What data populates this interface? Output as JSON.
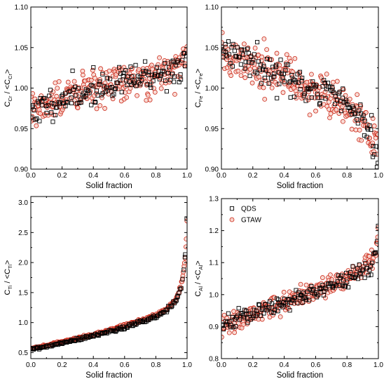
{
  "colors": {
    "qds": "#000000",
    "gtaw_edge": "#cc2a1a",
    "gtaw_fill": "#f7d0c8"
  },
  "legend": {
    "entries": [
      "QDS",
      "GTAW"
    ],
    "placement": "top-left of bottom-right panel"
  },
  "chart_data": [
    {
      "type": "scatter",
      "panel": "top-left",
      "xlabel": "Solid fraction",
      "ylabel": {
        "main": "C",
        "sub": "Cr",
        "sep": " / <C",
        "sub2": "Cr",
        "close": ">"
      },
      "xlim": [
        0,
        1.0
      ],
      "ylim": [
        0.9,
        1.1
      ],
      "xticks": [
        "0.0",
        "0.2",
        "0.4",
        "0.6",
        "0.8",
        "1.0"
      ],
      "yticks": [
        "0.90",
        "0.95",
        "1.00",
        "1.05",
        "1.10"
      ],
      "xtick_values": [
        0,
        0.2,
        0.4,
        0.6,
        0.8,
        1.0
      ],
      "ytick_values": [
        0.9,
        0.95,
        1.0,
        1.05,
        1.1
      ],
      "series": [
        {
          "name": "QDS",
          "marker": "square",
          "trend": {
            "x": [
              0,
              0.2,
              0.4,
              0.6,
              0.8,
              0.95,
              1.0
            ],
            "y": [
              0.972,
              0.985,
              0.998,
              1.008,
              1.016,
              1.022,
              1.035
            ]
          },
          "noise": 0.009,
          "count": 150,
          "seed": 11
        },
        {
          "name": "GTAW",
          "marker": "circle",
          "trend": {
            "x": [
              0,
              0.2,
              0.4,
              0.6,
              0.8,
              0.95,
              1.0
            ],
            "y": [
              0.973,
              0.986,
              0.999,
              1.009,
              1.018,
              1.025,
              1.04
            ]
          },
          "noise": 0.012,
          "count": 280,
          "seed": 12
        }
      ]
    },
    {
      "type": "scatter",
      "panel": "top-right",
      "xlabel": "Solid fraction",
      "ylabel": {
        "main": "C",
        "sub": "Fe",
        "sep": " / <C",
        "sub2": "Fe",
        "close": ">"
      },
      "xlim": [
        0,
        1.0
      ],
      "ylim": [
        0.9,
        1.1
      ],
      "xticks": [
        "0.0",
        "0.2",
        "0.4",
        "0.6",
        "0.8",
        "1.0"
      ],
      "yticks": [
        "0.90",
        "0.95",
        "1.00",
        "1.05",
        "1.10"
      ],
      "xtick_values": [
        0,
        0.2,
        0.4,
        0.6,
        0.8,
        1.0
      ],
      "ytick_values": [
        0.9,
        0.95,
        1.0,
        1.05,
        1.1
      ],
      "series": [
        {
          "name": "QDS",
          "marker": "square",
          "trend": {
            "x": [
              0,
              0.2,
              0.4,
              0.6,
              0.8,
              0.9,
              0.95,
              1.0
            ],
            "y": [
              1.045,
              1.03,
              1.015,
              1.0,
              0.98,
              0.962,
              0.945,
              0.91
            ]
          },
          "noise": 0.01,
          "count": 150,
          "seed": 21
        },
        {
          "name": "GTAW",
          "marker": "circle",
          "trend": {
            "x": [
              0,
              0.2,
              0.4,
              0.6,
              0.8,
              0.9,
              0.95,
              1.0
            ],
            "y": [
              1.042,
              1.028,
              1.012,
              0.997,
              0.978,
              0.96,
              0.945,
              0.935
            ]
          },
          "noise": 0.012,
          "count": 280,
          "seed": 22
        }
      ]
    },
    {
      "type": "scatter",
      "panel": "bottom-left",
      "xlabel": "Solid fraction",
      "ylabel": {
        "main": "C",
        "sub": "Ti",
        "sep": " / <C",
        "sub2": "Ti",
        "close": ">"
      },
      "xlim": [
        0,
        1.0
      ],
      "ylim": [
        0.4,
        3.1
      ],
      "xticks": [
        "0.0",
        "0.2",
        "0.4",
        "0.6",
        "0.8",
        "1.0"
      ],
      "yticks": [
        "0.5",
        "1.0",
        "1.5",
        "2.0",
        "2.5",
        "3.0"
      ],
      "xtick_values": [
        0,
        0.2,
        0.4,
        0.6,
        0.8,
        1.0
      ],
      "ytick_values": [
        0.5,
        1.0,
        1.5,
        2.0,
        2.5,
        3.0
      ],
      "series": [
        {
          "name": "QDS",
          "marker": "square",
          "trend": {
            "x": [
              0,
              0.1,
              0.2,
              0.3,
              0.4,
              0.5,
              0.6,
              0.7,
              0.8,
              0.85,
              0.9,
              0.93,
              0.95,
              0.97,
              0.98,
              0.99,
              1.0
            ],
            "y": [
              0.55,
              0.6,
              0.66,
              0.72,
              0.78,
              0.85,
              0.92,
              1.0,
              1.1,
              1.17,
              1.28,
              1.38,
              1.5,
              1.7,
              1.9,
              2.2,
              2.9
            ]
          },
          "noise": 0.015,
          "count": 150,
          "seed": 31
        },
        {
          "name": "GTAW",
          "marker": "circle",
          "trend": {
            "x": [
              0,
              0.1,
              0.2,
              0.3,
              0.4,
              0.5,
              0.6,
              0.7,
              0.8,
              0.85,
              0.9,
              0.93,
              0.95,
              0.97,
              0.98,
              0.99,
              1.0
            ],
            "y": [
              0.57,
              0.62,
              0.68,
              0.74,
              0.8,
              0.87,
              0.95,
              1.03,
              1.13,
              1.2,
              1.3,
              1.4,
              1.52,
              1.72,
              1.9,
              2.1,
              2.75
            ]
          },
          "noise": 0.012,
          "count": 280,
          "seed": 32
        }
      ]
    },
    {
      "type": "scatter",
      "panel": "bottom-right",
      "xlabel": "Solid fraction",
      "ylabel": {
        "main": "C",
        "sub": "Al",
        "sep": " / <C",
        "sub2": "Al",
        "close": ">"
      },
      "xlim": [
        0,
        1.0
      ],
      "ylim": [
        0.8,
        1.3
      ],
      "xticks": [
        "0.0",
        "0.2",
        "0.4",
        "0.6",
        "0.8",
        "1.0"
      ],
      "yticks": [
        "0.8",
        "0.9",
        "1.0",
        "1.1",
        "1.2",
        "1.3"
      ],
      "xtick_values": [
        0,
        0.2,
        0.4,
        0.6,
        0.8,
        1.0
      ],
      "ytick_values": [
        0.8,
        0.9,
        1.0,
        1.1,
        1.2,
        1.3
      ],
      "series": [
        {
          "name": "QDS",
          "marker": "square",
          "trend": {
            "x": [
              0,
              0.2,
              0.4,
              0.6,
              0.8,
              0.9,
              0.95,
              0.98,
              1.0
            ],
            "y": [
              0.905,
              0.94,
              0.975,
              1.01,
              1.045,
              1.07,
              1.09,
              1.13,
              1.22
            ]
          },
          "noise": 0.013,
          "count": 150,
          "seed": 41
        },
        {
          "name": "GTAW",
          "marker": "circle",
          "trend": {
            "x": [
              0,
              0.2,
              0.4,
              0.6,
              0.8,
              0.9,
              0.95,
              0.98,
              1.0
            ],
            "y": [
              0.9,
              0.94,
              0.975,
              1.012,
              1.05,
              1.075,
              1.095,
              1.13,
              1.2
            ]
          },
          "noise": 0.017,
          "count": 280,
          "seed": 42
        }
      ]
    }
  ]
}
